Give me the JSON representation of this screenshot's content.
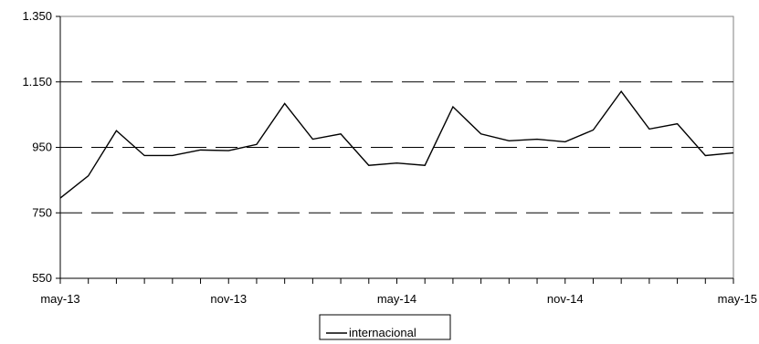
{
  "chart_data": {
    "type": "line",
    "title": "",
    "xlabel": "",
    "ylabel": "",
    "ylim": [
      550,
      1350
    ],
    "yticks": [
      550,
      750,
      950,
      1150,
      1350
    ],
    "ytick_labels": [
      "550",
      "750",
      "950",
      "1.150",
      "1.350"
    ],
    "xtick_labels": [
      {
        "index": 0,
        "label": "may-13"
      },
      {
        "index": 6,
        "label": "nov-13"
      },
      {
        "index": 12,
        "label": "may-14"
      },
      {
        "index": 18,
        "label": "nov-14"
      },
      {
        "index": 24,
        "label": "may-15"
      }
    ],
    "grid": "dashed horizontal at 750, 950, 1150",
    "legend_position": "bottom-center",
    "series": [
      {
        "name": "internacional",
        "color": "#000000",
        "values": [
          795,
          863,
          1001,
          925,
          925,
          942,
          940,
          959,
          1084,
          975,
          991,
          895,
          902,
          895,
          1074,
          991,
          970,
          975,
          967,
          1003,
          1121,
          1006,
          1022,
          925,
          933
        ]
      }
    ]
  }
}
